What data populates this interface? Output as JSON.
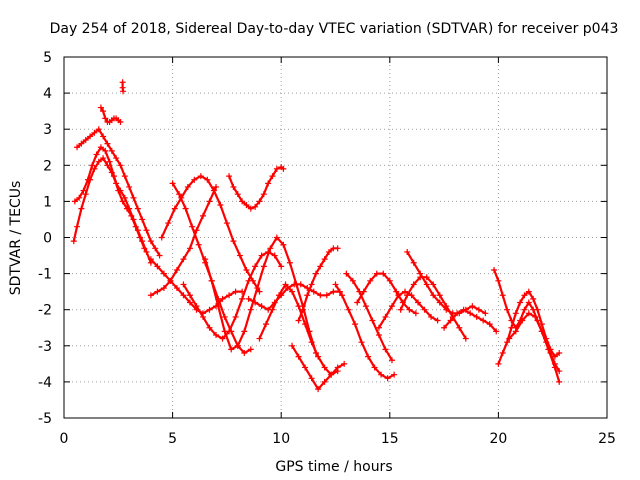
{
  "chart_data": {
    "type": "scatter",
    "title": "Day 254 of 2018, Sidereal Day-to-day VTEC variation (SDTVAR) for receiver p043",
    "xlabel": "GPS time / hours",
    "ylabel": "SDTVAR / TECUs",
    "xlim": [
      0,
      25
    ],
    "ylim": [
      -5,
      5
    ],
    "grid": true,
    "xticks": [
      "0",
      "5",
      "10",
      "15",
      "20",
      "25"
    ],
    "yticks": [
      "-5",
      "-4",
      "-3",
      "-2",
      "-1",
      "0",
      "1",
      "2",
      "3",
      "4",
      "5"
    ],
    "marker": "+",
    "color": "#ff0000",
    "series": [
      {
        "name": "s1",
        "x": [
          0.45,
          0.6,
          0.8,
          1.0,
          1.2,
          1.4,
          1.6,
          1.8,
          2.0,
          2.2,
          2.4,
          2.6,
          2.8,
          3.0,
          3.2,
          3.4,
          3.6,
          3.8,
          4.0
        ],
        "y": [
          -0.1,
          0.3,
          0.8,
          1.2,
          1.6,
          1.9,
          2.1,
          2.2,
          2.0,
          1.8,
          1.5,
          1.3,
          1.1,
          0.8,
          0.5,
          0.2,
          -0.1,
          -0.4,
          -0.7
        ]
      },
      {
        "name": "s2",
        "x": [
          0.5,
          0.7,
          0.9,
          1.1,
          1.3,
          1.5,
          1.7,
          1.9,
          2.1,
          2.3,
          2.5,
          2.7,
          2.9,
          3.1,
          3.3,
          3.5,
          3.7
        ],
        "y": [
          1.0,
          1.1,
          1.3,
          1.6,
          2.0,
          2.3,
          2.5,
          2.4,
          2.1,
          1.7,
          1.3,
          1.0,
          0.8,
          0.6,
          0.3,
          0.0,
          -0.3
        ]
      },
      {
        "name": "s3",
        "x": [
          0.6,
          0.8,
          1.0,
          1.2,
          1.4,
          1.6,
          1.8,
          2.0,
          2.2,
          2.4,
          2.6,
          2.8,
          3.0,
          3.2,
          3.4,
          3.6,
          3.8,
          4.0,
          4.2,
          4.4
        ],
        "y": [
          2.5,
          2.6,
          2.7,
          2.8,
          2.9,
          3.0,
          2.8,
          2.6,
          2.4,
          2.2,
          2.0,
          1.7,
          1.4,
          1.1,
          0.8,
          0.5,
          0.2,
          -0.1,
          -0.3,
          -0.5
        ]
      },
      {
        "name": "s4",
        "x": [
          1.7,
          1.8,
          1.9,
          2.0,
          2.1,
          2.2,
          2.3,
          2.4,
          2.5,
          2.6
        ],
        "y": [
          3.6,
          3.5,
          3.3,
          3.2,
          3.2,
          3.25,
          3.3,
          3.3,
          3.25,
          3.2
        ]
      },
      {
        "name": "s5",
        "x": [
          2.7,
          2.7,
          2.72
        ],
        "y": [
          4.3,
          4.15,
          4.05
        ]
      },
      {
        "name": "s6",
        "x": [
          4.0,
          4.3,
          4.6,
          4.9,
          5.2,
          5.5,
          5.8,
          6.1,
          6.4,
          6.7,
          7.0,
          7.3,
          7.6,
          7.9,
          8.2
        ],
        "y": [
          -0.6,
          -0.8,
          -1.0,
          -1.2,
          -1.4,
          -1.6,
          -1.8,
          -2.0,
          -2.1,
          -2.0,
          -1.9,
          -1.7,
          -1.6,
          -1.5,
          -1.5
        ]
      },
      {
        "name": "s7",
        "x": [
          4.0,
          4.3,
          4.6,
          4.9,
          5.2,
          5.5,
          5.8,
          6.1,
          6.4,
          6.7,
          7.0
        ],
        "y": [
          -1.6,
          -1.5,
          -1.4,
          -1.2,
          -0.9,
          -0.6,
          -0.3,
          0.2,
          0.6,
          1.0,
          1.4
        ]
      },
      {
        "name": "s8",
        "x": [
          4.5,
          4.8,
          5.1,
          5.4,
          5.7,
          6.0,
          6.3,
          6.6,
          6.9,
          7.2,
          7.5,
          7.8,
          8.1,
          8.4,
          8.7,
          9.0
        ],
        "y": [
          0.0,
          0.4,
          0.8,
          1.1,
          1.4,
          1.6,
          1.7,
          1.6,
          1.3,
          0.9,
          0.4,
          -0.1,
          -0.5,
          -0.9,
          -1.2,
          -1.5
        ]
      },
      {
        "name": "s9",
        "x": [
          5.0,
          5.3,
          5.6,
          5.9,
          6.2,
          6.5,
          6.8,
          7.1,
          7.4,
          7.7,
          8.0,
          8.3,
          8.6
        ],
        "y": [
          1.5,
          1.2,
          0.8,
          0.3,
          -0.2,
          -0.7,
          -1.2,
          -1.7,
          -2.2,
          -2.6,
          -3.0,
          -3.2,
          -3.1
        ]
      },
      {
        "name": "s10",
        "x": [
          5.5,
          5.8,
          6.1,
          6.4,
          6.7,
          7.0,
          7.3,
          7.6,
          7.9,
          8.2,
          8.5,
          8.8,
          9.1,
          9.4,
          9.7,
          10.0
        ],
        "y": [
          -1.3,
          -1.6,
          -1.9,
          -2.2,
          -2.5,
          -2.7,
          -2.8,
          -2.6,
          -2.2,
          -1.7,
          -1.2,
          -0.8,
          -0.5,
          -0.4,
          -0.5,
          -0.8
        ]
      },
      {
        "name": "s11",
        "x": [
          6.5,
          6.8,
          7.1,
          7.4,
          7.7,
          8.0,
          8.3,
          8.6,
          8.9,
          9.2,
          9.5,
          9.8,
          10.1,
          10.4,
          10.7,
          11.0,
          11.3,
          11.6
        ],
        "y": [
          -0.6,
          -1.2,
          -1.9,
          -2.6,
          -3.1,
          -3.0,
          -2.6,
          -2.0,
          -1.4,
          -0.8,
          -0.3,
          0.0,
          -0.2,
          -0.7,
          -1.3,
          -1.9,
          -2.6,
          -3.2
        ]
      },
      {
        "name": "s12",
        "x": [
          7.6,
          7.8,
          8.0,
          8.2,
          8.4,
          8.6,
          8.8,
          9.0,
          9.2,
          9.4,
          9.6,
          9.8,
          10.0,
          10.1
        ],
        "y": [
          1.7,
          1.4,
          1.2,
          1.0,
          0.9,
          0.8,
          0.85,
          1.0,
          1.2,
          1.5,
          1.7,
          1.9,
          1.95,
          1.9
        ]
      },
      {
        "name": "s13",
        "x": [
          8.5,
          8.8,
          9.1,
          9.4,
          9.7,
          10.0,
          10.3,
          10.6,
          10.9,
          11.2,
          11.5,
          11.8,
          12.1,
          12.4,
          12.7
        ],
        "y": [
          -1.7,
          -1.8,
          -1.9,
          -2.0,
          -1.8,
          -1.6,
          -1.4,
          -1.3,
          -1.3,
          -1.4,
          -1.5,
          -1.6,
          -1.6,
          -1.5,
          -1.5
        ]
      },
      {
        "name": "s14",
        "x": [
          9.0,
          9.3,
          9.6,
          9.9,
          10.2,
          10.5,
          10.8,
          11.1,
          11.4,
          11.7,
          12.0,
          12.3,
          12.6
        ],
        "y": [
          -2.8,
          -2.4,
          -2.0,
          -1.6,
          -1.3,
          -1.5,
          -1.9,
          -2.4,
          -2.9,
          -3.3,
          -3.6,
          -3.8,
          -3.7
        ]
      },
      {
        "name": "s15",
        "x": [
          10.5,
          10.8,
          11.1,
          11.4,
          11.7,
          12.0,
          12.3,
          12.6,
          12.9
        ],
        "y": [
          -3.0,
          -3.3,
          -3.6,
          -3.9,
          -4.2,
          -4.0,
          -3.8,
          -3.6,
          -3.5
        ]
      },
      {
        "name": "s16",
        "x": [
          10.8,
          11.0,
          11.2,
          11.4,
          11.6,
          11.8,
          12.0,
          12.2,
          12.4,
          12.6
        ],
        "y": [
          -2.3,
          -2.0,
          -1.6,
          -1.3,
          -1.0,
          -0.8,
          -0.6,
          -0.4,
          -0.3,
          -0.3
        ]
      },
      {
        "name": "s17",
        "x": [
          12.5,
          12.8,
          13.1,
          13.4,
          13.7,
          14.0,
          14.3,
          14.6,
          14.9,
          15.2
        ],
        "y": [
          -1.3,
          -1.6,
          -2.0,
          -2.4,
          -2.9,
          -3.3,
          -3.6,
          -3.8,
          -3.9,
          -3.8
        ]
      },
      {
        "name": "s18",
        "x": [
          13.0,
          13.3,
          13.6,
          13.9,
          14.2,
          14.5,
          14.8,
          15.1
        ],
        "y": [
          -1.0,
          -1.2,
          -1.5,
          -1.9,
          -2.3,
          -2.7,
          -3.1,
          -3.4
        ]
      },
      {
        "name": "s19",
        "x": [
          13.5,
          13.8,
          14.1,
          14.4,
          14.7,
          15.0,
          15.3,
          15.6,
          15.9,
          16.2
        ],
        "y": [
          -1.8,
          -1.5,
          -1.2,
          -1.0,
          -1.0,
          -1.2,
          -1.5,
          -1.8,
          -2.0,
          -2.1
        ]
      },
      {
        "name": "s20",
        "x": [
          14.5,
          14.8,
          15.1,
          15.4,
          15.7,
          16.0,
          16.3,
          16.6,
          16.9,
          17.2
        ],
        "y": [
          -2.5,
          -2.2,
          -1.9,
          -1.6,
          -1.5,
          -1.6,
          -1.8,
          -2.0,
          -2.2,
          -2.3
        ]
      },
      {
        "name": "s21",
        "x": [
          15.5,
          15.8,
          16.1,
          16.4,
          16.7,
          17.0,
          17.3,
          17.6,
          17.9,
          18.2,
          18.5
        ],
        "y": [
          -2.0,
          -1.6,
          -1.3,
          -1.1,
          -1.1,
          -1.3,
          -1.6,
          -1.9,
          -2.2,
          -2.5,
          -2.8
        ]
      },
      {
        "name": "s22",
        "x": [
          15.8,
          16.1,
          16.4,
          16.7,
          17.0,
          17.3,
          17.6,
          17.9,
          18.2,
          18.5,
          18.8,
          19.1,
          19.4
        ],
        "y": [
          -0.4,
          -0.7,
          -1.0,
          -1.3,
          -1.6,
          -1.8,
          -2.0,
          -2.1,
          -2.1,
          -2.0,
          -1.9,
          -2.0,
          -2.1
        ]
      },
      {
        "name": "s23",
        "x": [
          17.5,
          17.8,
          18.1,
          18.4,
          18.7,
          19.0,
          19.3,
          19.6,
          19.9
        ],
        "y": [
          -2.5,
          -2.3,
          -2.1,
          -2.0,
          -2.1,
          -2.2,
          -2.3,
          -2.4,
          -2.6
        ]
      },
      {
        "name": "s24",
        "x": [
          19.8,
          20.0,
          20.2,
          20.4,
          20.6,
          20.8,
          21.0,
          21.2,
          21.4,
          21.6,
          21.8,
          22.0,
          22.2,
          22.4,
          22.6,
          22.8
        ],
        "y": [
          -0.9,
          -1.2,
          -1.6,
          -2.0,
          -2.3,
          -2.5,
          -2.3,
          -2.0,
          -1.8,
          -2.0,
          -2.3,
          -2.6,
          -2.9,
          -3.2,
          -3.5,
          -3.7
        ]
      },
      {
        "name": "s25",
        "x": [
          20.0,
          20.2,
          20.4,
          20.6,
          20.8,
          21.0,
          21.2,
          21.4,
          21.6,
          21.8,
          22.0,
          22.2,
          22.4,
          22.6,
          22.8
        ],
        "y": [
          -3.5,
          -3.2,
          -2.9,
          -2.5,
          -2.1,
          -1.8,
          -1.6,
          -1.5,
          -1.7,
          -2.0,
          -2.4,
          -2.8,
          -3.1,
          -3.3,
          -3.2
        ]
      },
      {
        "name": "s26",
        "x": [
          20.5,
          20.8,
          21.1,
          21.4,
          21.7,
          22.0,
          22.3,
          22.6,
          22.8
        ],
        "y": [
          -2.8,
          -2.6,
          -2.3,
          -2.1,
          -2.2,
          -2.6,
          -3.1,
          -3.6,
          -4.0
        ]
      }
    ]
  }
}
